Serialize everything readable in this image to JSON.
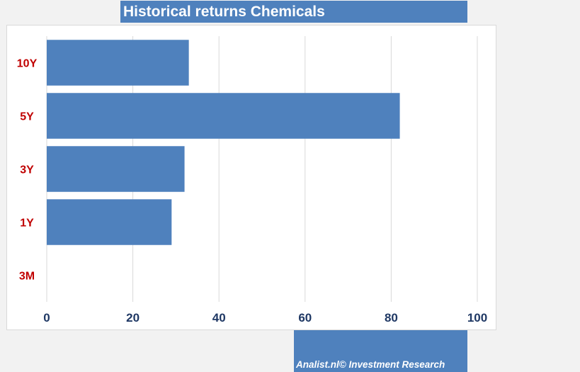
{
  "title": "Historical returns Chemicals",
  "footer": "Analist.nl© Investment Research",
  "colors": {
    "bar": "#4f81bd",
    "category_label": "#c00000",
    "tick_label": "#1f3864",
    "grid": "#d9d9d9",
    "title_bg": "#4f81bd"
  },
  "chart_data": {
    "type": "bar",
    "orientation": "horizontal",
    "title": "Historical returns Chemicals",
    "categories": [
      "10Y",
      "5Y",
      "3Y",
      "1Y",
      "3M"
    ],
    "values": [
      33,
      82,
      32,
      29,
      0
    ],
    "xlim": [
      0,
      100
    ],
    "xticks": [
      0,
      20,
      40,
      60,
      80,
      100
    ],
    "xlabel": "",
    "ylabel": "",
    "grid": "vertical",
    "legend": "none"
  }
}
